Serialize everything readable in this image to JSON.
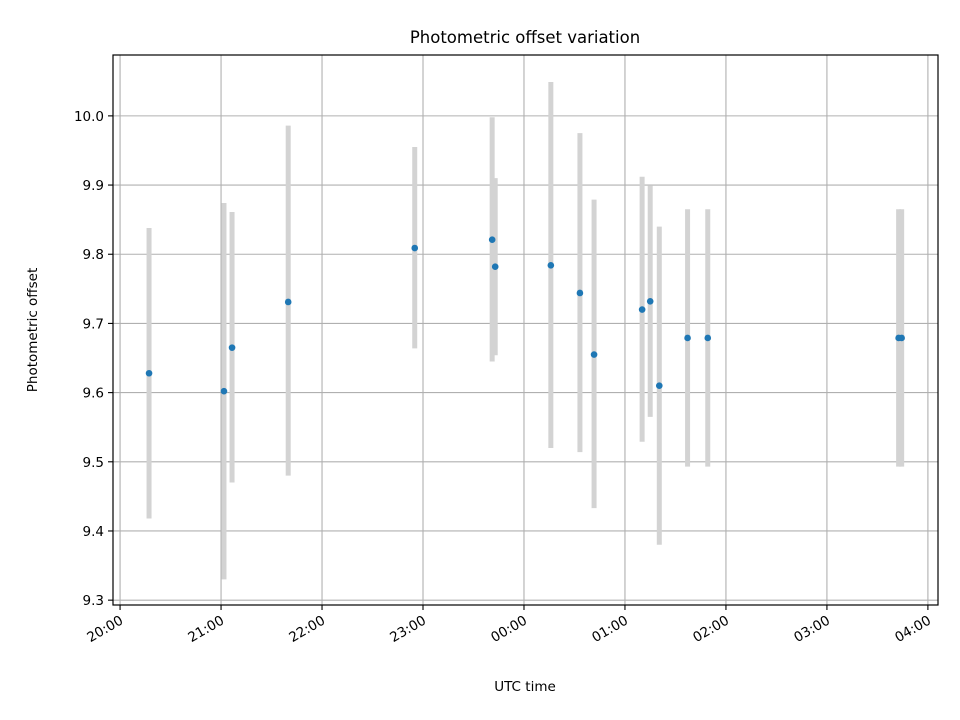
{
  "chart_data": {
    "type": "scatter",
    "title": "Photometric offset variation",
    "xlabel": "UTC time",
    "ylabel": "Photometric offset",
    "x_unit": "UTC time, hours after 20:00 of the start date",
    "xlim": [
      -0.07,
      8.1
    ],
    "ylim": [
      9.293,
      10.088
    ],
    "grid": true,
    "x_tick_labels": [
      "20:00",
      "21:00",
      "22:00",
      "23:00",
      "00:00",
      "01:00",
      "02:00",
      "03:00",
      "04:00"
    ],
    "x_tick_values": [
      0,
      1,
      2,
      3,
      4,
      5,
      6,
      7,
      8
    ],
    "y_ticks": [
      9.3,
      9.4,
      9.5,
      9.6,
      9.7,
      9.8,
      9.9,
      10.0
    ],
    "y_tick_labels": [
      "9.3",
      "9.4",
      "9.5",
      "9.6",
      "9.7",
      "9.8",
      "9.9",
      "10.0"
    ],
    "point_color": "#1f77b4",
    "errorbar_color": "#d3d3d3",
    "points": [
      {
        "time": "20:17",
        "x": 0.287,
        "y": 9.628,
        "low": 9.418,
        "high": 9.838
      },
      {
        "time": "21:02",
        "x": 1.029,
        "y": 9.602,
        "low": 9.33,
        "high": 9.874
      },
      {
        "time": "21:07",
        "x": 1.109,
        "y": 9.665,
        "low": 9.47,
        "high": 9.861
      },
      {
        "time": "21:40",
        "x": 1.665,
        "y": 9.731,
        "low": 9.48,
        "high": 9.986
      },
      {
        "time": "22:55",
        "x": 2.918,
        "y": 9.809,
        "low": 9.664,
        "high": 9.955
      },
      {
        "time": "23:41",
        "x": 3.685,
        "y": 9.821,
        "low": 9.645,
        "high": 9.998
      },
      {
        "time": "23:43",
        "x": 3.715,
        "y": 9.782,
        "low": 9.654,
        "high": 9.91
      },
      {
        "time": "00:16",
        "x": 4.266,
        "y": 9.784,
        "low": 9.52,
        "high": 10.049
      },
      {
        "time": "00:33",
        "x": 4.554,
        "y": 9.744,
        "low": 9.514,
        "high": 9.975
      },
      {
        "time": "00:42",
        "x": 4.694,
        "y": 9.655,
        "low": 9.433,
        "high": 9.879
      },
      {
        "time": "01:10",
        "x": 5.17,
        "y": 9.72,
        "low": 9.529,
        "high": 9.912
      },
      {
        "time": "01:15",
        "x": 5.25,
        "y": 9.732,
        "low": 9.565,
        "high": 9.899
      },
      {
        "time": "01:20",
        "x": 5.34,
        "y": 9.61,
        "low": 9.38,
        "high": 9.84
      },
      {
        "time": "01:37",
        "x": 5.62,
        "y": 9.679,
        "low": 9.493,
        "high": 9.865
      },
      {
        "time": "01:49",
        "x": 5.82,
        "y": 9.679,
        "low": 9.493,
        "high": 9.865
      },
      {
        "time": "03:42",
        "x": 7.71,
        "y": 9.679,
        "low": 9.493,
        "high": 9.865
      },
      {
        "time": "03:44",
        "x": 7.74,
        "y": 9.679,
        "low": 9.493,
        "high": 9.865
      }
    ]
  }
}
